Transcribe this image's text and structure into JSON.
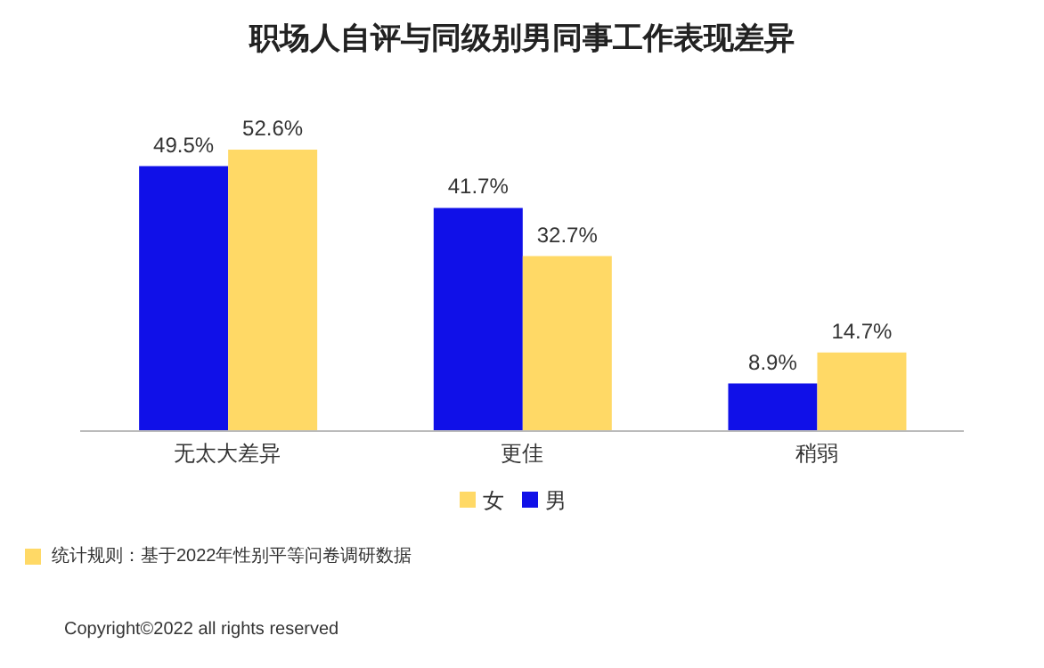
{
  "chart_data": {
    "type": "bar",
    "title": "职场人自评与同级别男同事工作表现差异",
    "categories": [
      "无太大差异",
      "更佳",
      "稍弱"
    ],
    "series": [
      {
        "name": "男",
        "color": "#1010e8",
        "values": [
          49.5,
          41.7,
          8.9
        ],
        "value_labels": [
          "49.5%",
          "41.7%",
          "8.9%"
        ]
      },
      {
        "name": "女",
        "color": "#ffd966",
        "values": [
          52.6,
          32.7,
          14.7
        ],
        "value_labels": [
          "52.6%",
          "32.7%",
          "14.7%"
        ]
      }
    ],
    "legend": "bottom",
    "grid": false,
    "annotations": [
      "统计规则：基于2022年性别平等问卷调研数据",
      "Copyright©2022 all rights reserved"
    ]
  }
}
